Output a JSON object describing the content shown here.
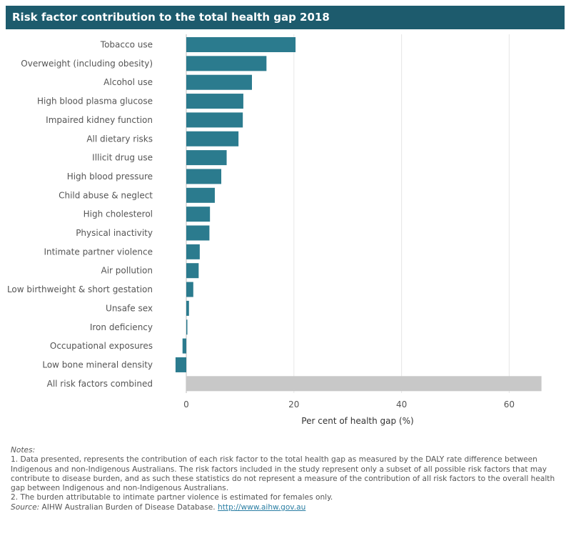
{
  "chart_data": {
    "type": "bar",
    "orientation": "horizontal",
    "title": "Risk factor contribution to the total health gap 2018",
    "xlabel": "Per cent of health gap (%)",
    "ylabel": "",
    "xlim": [
      -3,
      66
    ],
    "xticks": [
      0,
      20,
      40,
      60
    ],
    "grid": true,
    "categories": [
      "Tobacco use",
      "Overweight (including obesity)",
      "Alcohol use",
      "High blood plasma glucose",
      "Impaired kidney function",
      "All dietary risks",
      "Illicit drug use",
      "High blood pressure",
      "Child abuse & neglect",
      "High cholesterol",
      "Physical inactivity",
      "Intimate partner violence",
      "Air pollution",
      "Low birthweight & short gestation",
      "Unsafe sex",
      "Iron deficiency",
      "Occupational exposures",
      "Low bone mineral density",
      "All risk factors combined"
    ],
    "values": [
      20.3,
      14.9,
      12.2,
      10.6,
      10.5,
      9.7,
      7.5,
      6.5,
      5.3,
      4.4,
      4.3,
      2.5,
      2.3,
      1.3,
      0.5,
      0.2,
      -0.7,
      -2.0,
      66.0
    ],
    "colors": {
      "bar": "#2b7b8e",
      "total_bar": "#c8c8c8",
      "grid": "#e6e6e6",
      "zero_line": "#bdbdbd"
    }
  },
  "notes": {
    "heading": "Notes:",
    "note1": "1. Data presented, represents the contribution of each risk factor to the total health gap as measured by the DALY rate difference between Indigenous and non-Indigenous Australians. The risk factors included in the study represent only a subset of all possible risk factors that may contribute to disease burden, and as such these statistics do not represent a measure of the contribution of all risk factors to the overall health gap between Indigenous and non-Indigenous Australians.",
    "note2": "2. The burden attributable to intimate partner violence is estimated for females only.",
    "source_label": "Source:",
    "source_text": " AIHW Australian Burden of Disease Database. ",
    "source_link": "http://www.aihw.gov.au"
  }
}
